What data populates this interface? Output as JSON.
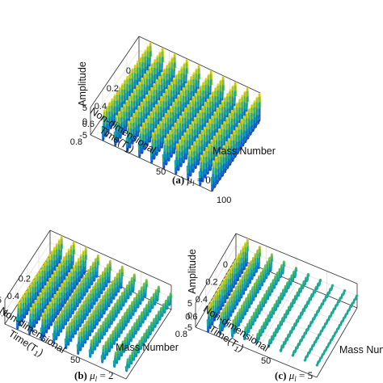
{
  "chart_data": [
    {
      "type": "line",
      "panel": "(a)",
      "caption_prefix": "(a)",
      "caption_symbol": "μ",
      "caption_sub": "l",
      "caption_value": "= 0",
      "xlabel": "Mass Number",
      "ylabel_lines": [
        "Non-dimensional",
        "Time(T"
      ],
      "ylabel_sub": "1",
      "zlabel": "Amplitude",
      "x_ticks": [
        "50",
        "100"
      ],
      "y_ticks": [
        "0",
        "0.2",
        "0.4",
        "0.6",
        "0.8"
      ],
      "z_ticks": [
        "5",
        "0",
        "-5"
      ],
      "xlim": [
        0,
        100
      ],
      "ylim": [
        0,
        0.8
      ],
      "zlim": [
        -5,
        5
      ],
      "grid": true,
      "colormap": "parula",
      "series": [
        {
          "mass": 10,
          "amplitude": 5
        },
        {
          "mass": 20,
          "amplitude": 5
        },
        {
          "mass": 30,
          "amplitude": 5
        },
        {
          "mass": 40,
          "amplitude": 5
        },
        {
          "mass": 50,
          "amplitude": 5
        },
        {
          "mass": 60,
          "amplitude": 5
        },
        {
          "mass": 70,
          "amplitude": 5
        },
        {
          "mass": 80,
          "amplitude": 5
        },
        {
          "mass": 90,
          "amplitude": 5
        },
        {
          "mass": 100,
          "amplitude": 5
        }
      ],
      "oscillations": 19
    },
    {
      "type": "line",
      "panel": "(b)",
      "caption_prefix": "(b)",
      "caption_symbol": "μ",
      "caption_sub": "l",
      "caption_value": "= 2",
      "xlabel": "Mass Number",
      "ylabel_lines": [
        "Non-dimensional",
        "Time(T"
      ],
      "ylabel_sub": "1",
      "zlabel": "",
      "x_ticks": [
        "50",
        "100"
      ],
      "y_ticks": [
        "0.2",
        "0.4",
        "0.6",
        "0.8"
      ],
      "z_ticks": [
        "5"
      ],
      "xlim": [
        0,
        100
      ],
      "ylim": [
        0,
        0.8
      ],
      "zlim": [
        -5,
        5
      ],
      "grid": true,
      "colormap": "parula",
      "series": [
        {
          "mass": 10,
          "amplitude": 5
        },
        {
          "mass": 20,
          "amplitude": 5
        },
        {
          "mass": 30,
          "amplitude": 5
        },
        {
          "mass": 40,
          "amplitude": 4
        },
        {
          "mass": 50,
          "amplitude": 4
        },
        {
          "mass": 60,
          "amplitude": 4
        },
        {
          "mass": 70,
          "amplitude": 3
        },
        {
          "mass": 80,
          "amplitude": 3
        },
        {
          "mass": 90,
          "amplitude": 2.5
        },
        {
          "mass": 100,
          "amplitude": 2
        }
      ],
      "oscillations": 19
    },
    {
      "type": "line",
      "panel": "(c)",
      "caption_prefix": "(c)",
      "caption_symbol": "μ",
      "caption_sub": "l",
      "caption_value": "= 5",
      "xlabel": "Mass Numb",
      "ylabel_lines": [
        "Non-dimensional",
        "Time(T"
      ],
      "ylabel_sub": "1",
      "zlabel": "Amplitude",
      "x_ticks": [
        "50"
      ],
      "y_ticks": [
        "0",
        "0.2",
        "0.4",
        "0.6",
        "0.8"
      ],
      "z_ticks": [
        "5",
        "0",
        "-5"
      ],
      "xlim": [
        0,
        100
      ],
      "ylim": [
        0,
        0.8
      ],
      "zlim": [
        -5,
        5
      ],
      "grid": true,
      "colormap": "parula",
      "series": [
        {
          "mass": 10,
          "amplitude": 5
        },
        {
          "mass": 20,
          "amplitude": 4
        },
        {
          "mass": 30,
          "amplitude": 3
        },
        {
          "mass": 40,
          "amplitude": 2
        },
        {
          "mass": 50,
          "amplitude": 1.5
        },
        {
          "mass": 60,
          "amplitude": 1
        },
        {
          "mass": 70,
          "amplitude": 0.7
        },
        {
          "mass": 80,
          "amplitude": 0.5
        },
        {
          "mass": 90,
          "amplitude": 0.4
        },
        {
          "mass": 100,
          "amplitude": 0.3
        }
      ],
      "oscillations": 19
    }
  ]
}
